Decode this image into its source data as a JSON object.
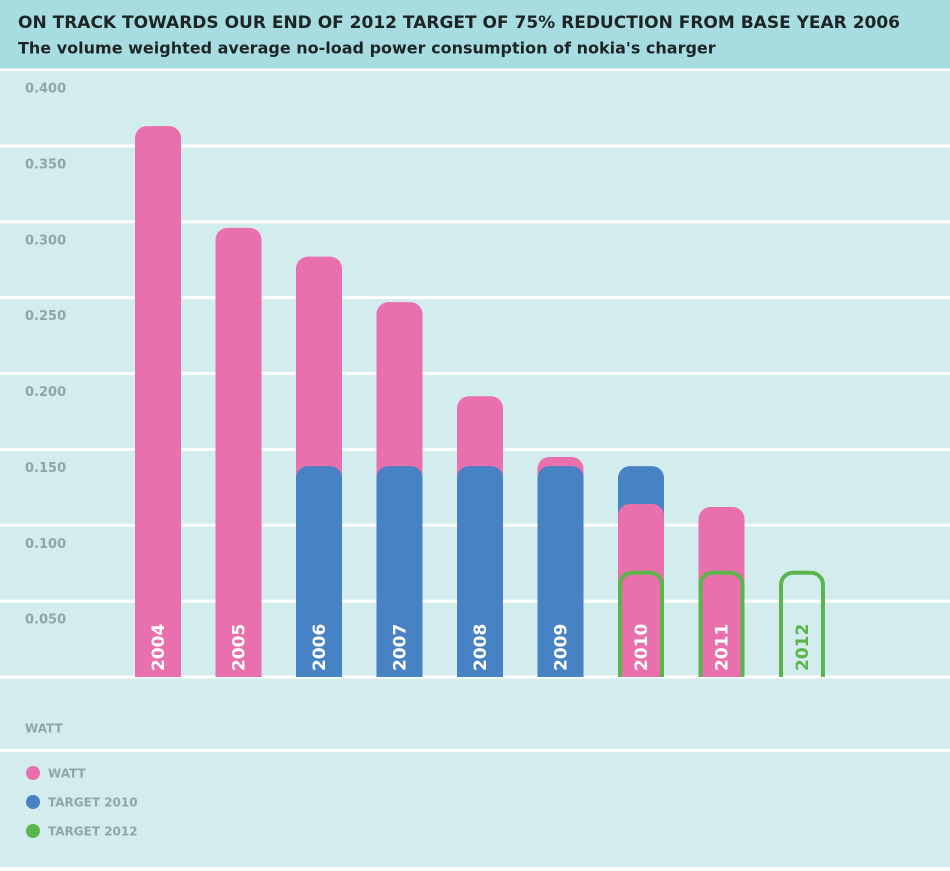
{
  "chart_data": {
    "type": "bar",
    "title": "ON TRACK TOWARDS OUR END OF 2012 TARGET OF 75% REDUCTION FROM BASE YEAR 2006",
    "subtitle": "The volume weighted average no-load power consumption of nokia's charger",
    "y_label": "WATT",
    "categories": [
      "2004",
      "2005",
      "2006",
      "2007",
      "2008",
      "2009",
      "2010",
      "2011",
      "2012"
    ],
    "series": [
      {
        "name": "WATT",
        "color": "#e970ac",
        "values": [
          0.363,
          0.296,
          0.277,
          0.247,
          0.185,
          0.145,
          0.114,
          0.112,
          null
        ]
      },
      {
        "name": "TARGET 2010",
        "color": "#4682c4",
        "values": [
          null,
          null,
          0.139,
          0.139,
          0.139,
          0.139,
          0.139,
          null,
          null
        ]
      },
      {
        "name": "TARGET 2012",
        "color": "#5bb54b",
        "values": [
          null,
          null,
          null,
          null,
          null,
          null,
          0.07,
          0.07,
          0.07
        ]
      }
    ],
    "ylim": [
      0,
      0.4
    ],
    "yticks": [
      {
        "value": 0.05,
        "label": "0.050"
      },
      {
        "value": 0.1,
        "label": "0.100"
      },
      {
        "value": 0.15,
        "label": "0.150"
      },
      {
        "value": 0.2,
        "label": "0.200"
      },
      {
        "value": 0.25,
        "label": "0.250"
      },
      {
        "value": 0.3,
        "label": "0.300"
      },
      {
        "value": 0.35,
        "label": "0.350"
      },
      {
        "value": 0.4,
        "label": "0.400"
      }
    ],
    "grid": true
  }
}
